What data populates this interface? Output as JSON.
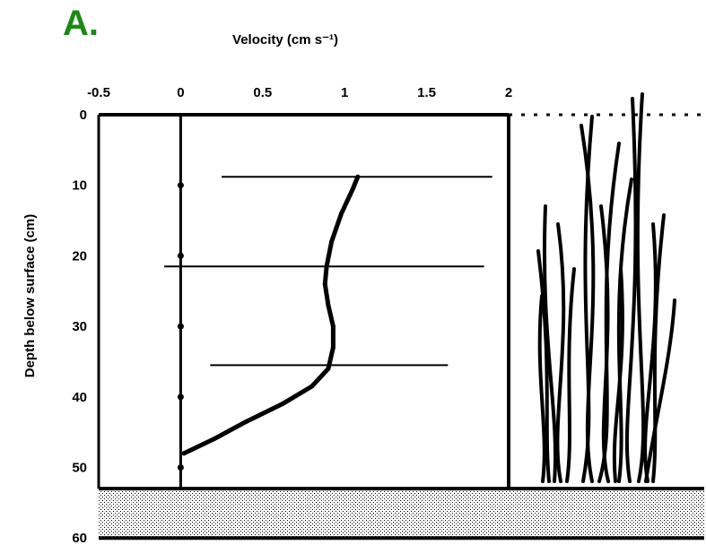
{
  "panel_label": "A.",
  "chart_data": {
    "type": "line",
    "title": "",
    "xlabel": "Velocity (cm s⁻¹)",
    "ylabel": "Depth below surface (cm)",
    "xlim": [
      -0.5,
      2
    ],
    "ylim": [
      0,
      60
    ],
    "x_ticks": [
      -0.5,
      0,
      0.5,
      1,
      1.5,
      2
    ],
    "x_tick_labels": [
      "-0.5",
      "0",
      "0.5",
      "1",
      "1.5",
      "2"
    ],
    "y_ticks": [
      0,
      10,
      20,
      30,
      40,
      50,
      60
    ],
    "y_tick_labels": [
      "0",
      "10",
      "20",
      "30",
      "40",
      "50",
      "60"
    ],
    "y_inverted": true,
    "series": [
      {
        "values_xy": [
          [
            1.08,
            8.8
          ],
          [
            1.05,
            10.5
          ],
          [
            0.98,
            14
          ],
          [
            0.92,
            18
          ],
          [
            0.89,
            21.5
          ],
          [
            0.88,
            24
          ],
          [
            0.9,
            27
          ],
          [
            0.93,
            30
          ],
          [
            0.93,
            33
          ],
          [
            0.9,
            36
          ],
          [
            0.8,
            38.5
          ],
          [
            0.62,
            41
          ],
          [
            0.4,
            43.5
          ],
          [
            0.2,
            46
          ],
          [
            0.02,
            48
          ]
        ],
        "color": "#000000"
      }
    ],
    "error_bars": [
      {
        "y": 8.8,
        "x_min": 0.25,
        "x_max": 1.9
      },
      {
        "y": 21.5,
        "x_min": -0.1,
        "x_max": 1.85
      },
      {
        "y": 35.5,
        "x_min": 0.18,
        "x_max": 1.63
      }
    ],
    "zero_line_points": [
      10,
      20,
      30,
      40,
      50
    ],
    "sediment_bed_depth_range": [
      53,
      60
    ],
    "seagrass_canopy": true
  }
}
